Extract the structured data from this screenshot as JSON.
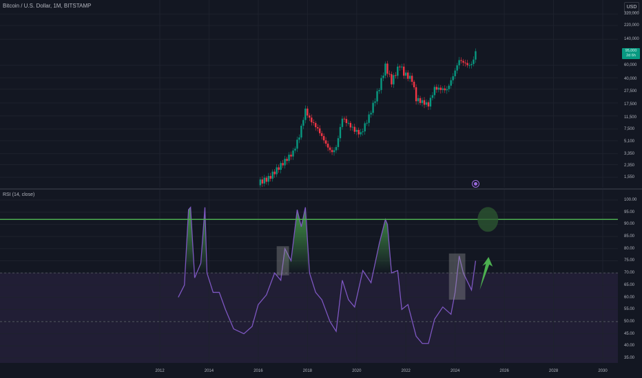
{
  "header": {
    "title": "Bitcoin / U.S. Dollar, 1M, BITSTAMP",
    "currency": "USD"
  },
  "price_axis": {
    "labels": [
      "320,000",
      "220,000",
      "140,000",
      "60,000",
      "40,000",
      "27,500",
      "17,500",
      "11,500",
      "7,500",
      "5,100",
      "3,350",
      "2,350",
      "1,550"
    ],
    "last_price_tag": {
      "line1": "95,000",
      "line2": "2d 6h",
      "color": "#089981"
    }
  },
  "rsi_axis": {
    "labels": [
      "100.00",
      "95.00",
      "90.00",
      "85.00",
      "80.00",
      "75.00",
      "70.00",
      "65.00",
      "60.00",
      "55.00",
      "50.00",
      "45.00",
      "40.00",
      "35.00"
    ]
  },
  "time_axis": {
    "labels": [
      "2012",
      "2014",
      "2016",
      "2018",
      "2020",
      "2022",
      "2024",
      "2026",
      "2028",
      "2030"
    ]
  },
  "indicator": {
    "title": "RSI (14, close)",
    "upper_band": 70,
    "lower_band": 50,
    "threshold_line": 92,
    "line_color": "#7e57c2",
    "threshold_color": "#4caf50"
  },
  "icons": {
    "target": "crosshair-target-icon",
    "arrow": "green-up-arrow-icon"
  },
  "colors": {
    "background": "#131722",
    "up": "#089981",
    "down": "#f23645",
    "rsi_band": "#2a2540",
    "annotation_box": "#8a8a8a",
    "annotation_circle": "#2e5a32"
  },
  "chart_data": [
    {
      "type": "candlestick",
      "title": "Bitcoin / U.S. Dollar, 1M, BITSTAMP",
      "yscale": "log",
      "ylabel": "USD",
      "yticks": [
        1550,
        2350,
        3350,
        5100,
        7500,
        11500,
        17500,
        27500,
        40000,
        60000,
        140000,
        220000,
        320000
      ],
      "xticks": [
        "2012",
        "2014",
        "2016",
        "2018",
        "2020",
        "2022",
        "2024",
        "2026",
        "2028",
        "2030"
      ],
      "approx_close_path": [
        {
          "x": "2016-01",
          "y": 1300
        },
        {
          "x": "2016-06",
          "y": 1500
        },
        {
          "x": "2016-12",
          "y": 2300
        },
        {
          "x": "2017-06",
          "y": 3500
        },
        {
          "x": "2017-09",
          "y": 6000
        },
        {
          "x": "2017-12",
          "y": 14000
        },
        {
          "x": "2018-02",
          "y": 10500
        },
        {
          "x": "2018-06",
          "y": 7500
        },
        {
          "x": "2018-11",
          "y": 4100
        },
        {
          "x": "2019-01",
          "y": 3500
        },
        {
          "x": "2019-03",
          "y": 4100
        },
        {
          "x": "2019-06",
          "y": 10800
        },
        {
          "x": "2019-12",
          "y": 7200
        },
        {
          "x": "2020-03",
          "y": 6400
        },
        {
          "x": "2020-07",
          "y": 11300
        },
        {
          "x": "2020-12",
          "y": 29000
        },
        {
          "x": "2021-03",
          "y": 58800
        },
        {
          "x": "2021-06",
          "y": 35000
        },
        {
          "x": "2021-10",
          "y": 61300
        },
        {
          "x": "2021-12",
          "y": 46300
        },
        {
          "x": "2022-04",
          "y": 37700
        },
        {
          "x": "2022-06",
          "y": 19900
        },
        {
          "x": "2022-12",
          "y": 16500
        },
        {
          "x": "2023-03",
          "y": 28400
        },
        {
          "x": "2023-09",
          "y": 27000
        },
        {
          "x": "2023-12",
          "y": 42300
        },
        {
          "x": "2024-03",
          "y": 71300
        },
        {
          "x": "2024-08",
          "y": 59000
        },
        {
          "x": "2024-10",
          "y": 70200
        },
        {
          "x": "2024-11",
          "y": 95000
        }
      ],
      "last_price": 95000
    },
    {
      "type": "line",
      "title": "RSI (14, close)",
      "ylim": [
        32,
        101
      ],
      "yticks": [
        35,
        40,
        45,
        50,
        55,
        60,
        65,
        70,
        75,
        80,
        85,
        90,
        95,
        100
      ],
      "hlines": [
        {
          "y": 92,
          "color": "#4caf50",
          "style": "solid"
        },
        {
          "y": 70,
          "style": "dashed"
        },
        {
          "y": 50,
          "style": "dashed"
        }
      ],
      "x": [
        "2012-10",
        "2013-01",
        "2013-03",
        "2013-04",
        "2013-06",
        "2013-09",
        "2013-11",
        "2013-12",
        "2014-03",
        "2014-06",
        "2014-09",
        "2015-01",
        "2015-06",
        "2015-10",
        "2016-01",
        "2016-05",
        "2016-09",
        "2016-12",
        "2017-02",
        "2017-05",
        "2017-08",
        "2017-10",
        "2017-12",
        "2018-02",
        "2018-05",
        "2018-08",
        "2018-12",
        "2019-03",
        "2019-06",
        "2019-09",
        "2019-12",
        "2020-04",
        "2020-08",
        "2020-12",
        "2021-03",
        "2021-04",
        "2021-06",
        "2021-09",
        "2021-11",
        "2022-02",
        "2022-06",
        "2022-09",
        "2022-12",
        "2023-03",
        "2023-07",
        "2023-11",
        "2024-01",
        "2024-03",
        "2024-05",
        "2024-09",
        "2024-11"
      ],
      "y": [
        60,
        65,
        96,
        97,
        68,
        74,
        97,
        70,
        62,
        62,
        55,
        47,
        45,
        48,
        57,
        61,
        70,
        67,
        80,
        75,
        96,
        89,
        97,
        70,
        62,
        59,
        50,
        46,
        67,
        59,
        56,
        71,
        66,
        82,
        92,
        90,
        70,
        71,
        55,
        57,
        44,
        41,
        41,
        51,
        56,
        53,
        62,
        77,
        70,
        63,
        75
      ],
      "annotations": [
        {
          "type": "rect",
          "x": [
            "2016-10",
            "2017-04"
          ],
          "y": [
            69,
            81
          ]
        },
        {
          "type": "rect",
          "x": [
            "2023-10",
            "2024-06"
          ],
          "y": [
            59,
            78
          ]
        },
        {
          "type": "circle",
          "x": "2025-05",
          "y": 92
        },
        {
          "type": "arrow",
          "from": {
            "x": "2025-01",
            "y": 63
          },
          "to": {
            "x": "2025-05",
            "y": 76
          },
          "color": "#4caf50"
        }
      ]
    }
  ]
}
